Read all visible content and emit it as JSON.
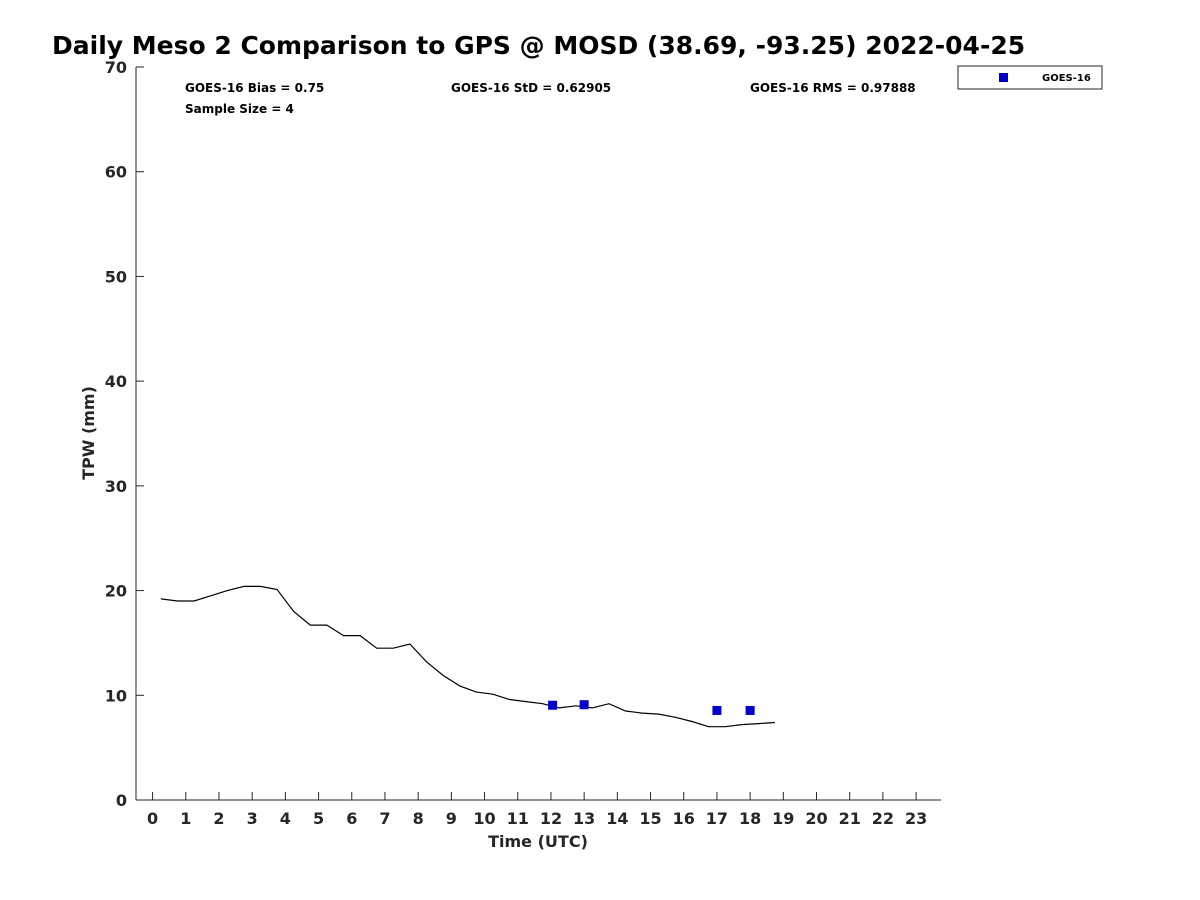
{
  "chart_data": {
    "type": "scatter",
    "title": "Daily Meso 2 Comparison to GPS @ MOSD (38.69, -93.25) 2022-04-25",
    "xlabel": "Time (UTC)",
    "ylabel": "TPW (mm)",
    "xlim": [
      -0.5,
      23.75
    ],
    "ylim": [
      0,
      70
    ],
    "x_ticks": [
      0,
      1,
      2,
      3,
      4,
      5,
      6,
      7,
      8,
      9,
      10,
      11,
      12,
      13,
      14,
      15,
      16,
      17,
      18,
      19,
      20,
      21,
      22,
      23
    ],
    "y_ticks": [
      0,
      10,
      20,
      30,
      40,
      50,
      60,
      70
    ],
    "grid": false,
    "legend_position": "top-right-outside",
    "stats": {
      "bias": "GOES-16 Bias = 0.75",
      "std": "GOES-16 StD = 0.62905",
      "rms": "GOES-16 RMS = 0.97888",
      "sample_size": "Sample Size = 4"
    },
    "reference_line": {
      "color": "#000000",
      "x": [
        0.25,
        0.75,
        1.25,
        1.75,
        2.25,
        2.75,
        3.25,
        3.75,
        4.25,
        4.75,
        5.25,
        5.75,
        6.25,
        6.75,
        7.25,
        7.75,
        8.25,
        8.75,
        9.25,
        9.75,
        10.25,
        10.75,
        11.25,
        11.75,
        12.25,
        12.75,
        13.25,
        13.75,
        14.25,
        14.75,
        15.25,
        15.75,
        16.25,
        16.75,
        17.25,
        17.75,
        18.25,
        18.75
      ],
      "y": [
        19.2,
        19.0,
        19.0,
        19.5,
        20.0,
        20.4,
        20.4,
        20.1,
        18.0,
        16.7,
        16.7,
        15.7,
        15.7,
        14.5,
        14.5,
        14.9,
        13.2,
        11.9,
        10.9,
        10.3,
        10.1,
        9.6,
        9.4,
        9.2,
        8.8,
        9.0,
        8.8,
        9.2,
        8.5,
        8.3,
        8.2,
        7.9,
        7.5,
        7.0,
        7.0,
        7.2,
        7.3,
        7.4
      ]
    },
    "series": [
      {
        "name": "GOES-16",
        "color": "#0000cc",
        "marker": "square",
        "x": [
          12.05,
          13.0,
          17.0,
          18.0
        ],
        "y": [
          9.05,
          9.1,
          8.55,
          8.55
        ]
      }
    ]
  }
}
